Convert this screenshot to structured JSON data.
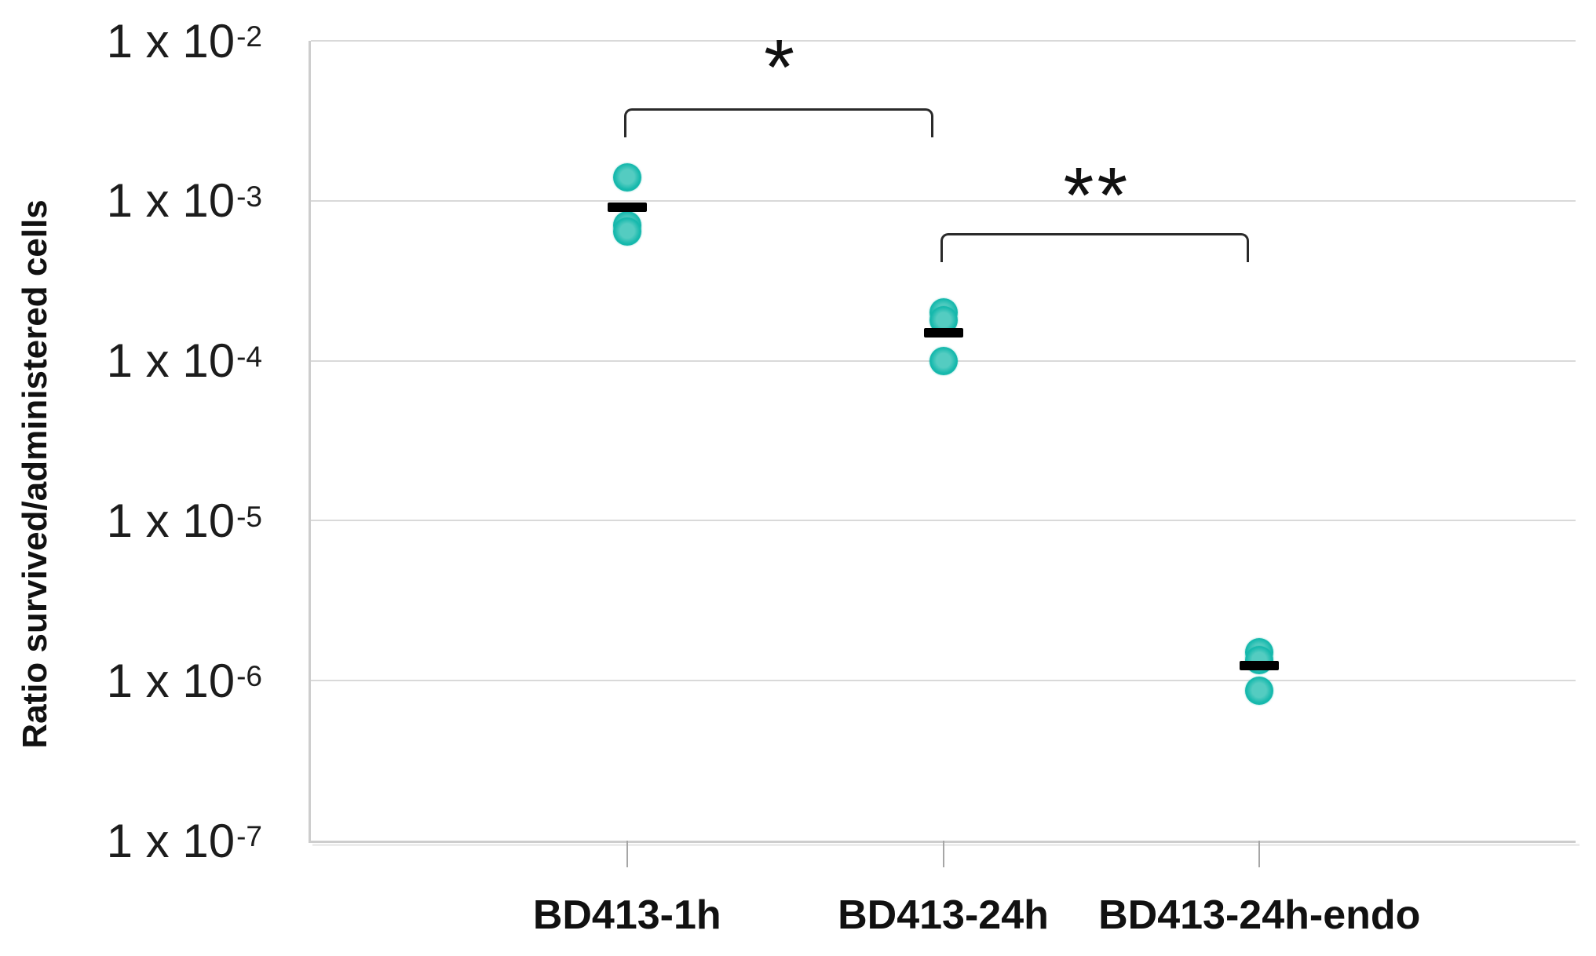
{
  "chart_data": {
    "type": "scatter",
    "title": "",
    "xlabel": "",
    "ylabel": "Ratio survived/administered cells",
    "y_scale": "log",
    "y_axis": {
      "max_exponent": -2,
      "min_exponent": -7,
      "ticks": [
        {
          "base": "1 x 10",
          "exp": "-2",
          "value": 0.01
        },
        {
          "base": "1 x 10",
          "exp": "-3",
          "value": 0.001
        },
        {
          "base": "1 x 10",
          "exp": "-4",
          "value": 0.0001
        },
        {
          "base": "1 x 10",
          "exp": "-5",
          "value": 1e-05
        },
        {
          "base": "1 x 10",
          "exp": "-6",
          "value": 1e-06
        },
        {
          "base": "1 x 10",
          "exp": "-7",
          "value": 1e-07
        }
      ]
    },
    "categories": [
      "BD413-1h",
      "BD413-24h",
      "BD413-24h-endo"
    ],
    "groups": [
      {
        "label": "BD413-1h",
        "points": [
          0.0014,
          0.0007,
          0.00064
        ],
        "mean": 0.00091
      },
      {
        "label": "BD413-24h",
        "points": [
          0.0002,
          0.00018,
          0.0001
        ],
        "mean": 0.00015
      },
      {
        "label": "BD413-24h-endo",
        "points": [
          1.5e-06,
          1.35e-06,
          8.7e-07
        ],
        "mean": 1.24e-06
      }
    ],
    "annotations": [
      {
        "label": "*",
        "from": 0,
        "to": 1,
        "bracket_y": 0.0038,
        "label_y": 0.0085
      },
      {
        "label": "**",
        "from": 1,
        "to": 2,
        "bracket_y": 0.00063,
        "label_y": 0.00135
      }
    ],
    "grid": true,
    "legend": false,
    "colors": {
      "point_outer": "#0fb2a6",
      "point_inner": "#54ccc1",
      "mean_bar": "#000000",
      "gridline": "#d9d9d9",
      "axis": "#cdcdcd",
      "text": "#111111"
    }
  }
}
